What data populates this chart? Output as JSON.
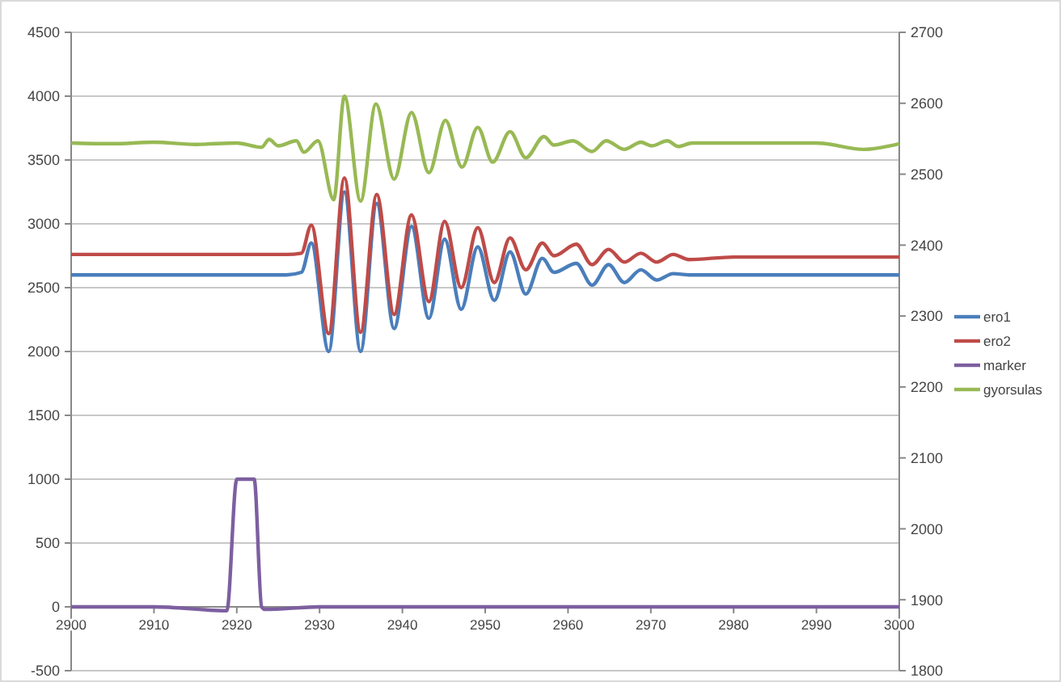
{
  "chart_data": {
    "type": "line",
    "xlim": [
      2900,
      3000
    ],
    "xticks": [
      2900,
      2910,
      2920,
      2930,
      2940,
      2950,
      2960,
      2970,
      2980,
      2990,
      3000
    ],
    "ylim": [
      -500,
      4500
    ],
    "yticks": [
      -500,
      0,
      500,
      1000,
      1500,
      2000,
      2500,
      3000,
      3500,
      4000,
      4500
    ],
    "y2lim": [
      1800,
      2700
    ],
    "y2ticks": [
      1800,
      1900,
      2000,
      2100,
      2200,
      2300,
      2400,
      2500,
      2600,
      2700
    ],
    "grid": "y",
    "legend": "right",
    "marker": "none",
    "line_style": "solid",
    "series": [
      {
        "name": "ero1",
        "color": "#4a7ebb",
        "x": [
          2900,
          2910,
          2920,
          2926,
          2927.8,
          2929,
          2931.1,
          2933,
          2934.95,
          2936.9,
          2939,
          2941.1,
          2943.2,
          2945.1,
          2947.1,
          2949.1,
          2951.1,
          2953,
          2954.9,
          2956.9,
          2958.3,
          2961,
          2962.9,
          2964.9,
          2966.8,
          2968.8,
          2970.7,
          2972.7,
          2974.6,
          2980,
          2990,
          3000
        ],
        "values": [
          2600,
          2600,
          2600,
          2600,
          2620,
          2850,
          2000,
          3250,
          2000,
          3160,
          2180,
          2980,
          2260,
          2880,
          2330,
          2820,
          2400,
          2780,
          2450,
          2730,
          2620,
          2690,
          2520,
          2680,
          2540,
          2640,
          2560,
          2610,
          2600,
          2600,
          2600,
          2600
        ]
      },
      {
        "name": "ero2",
        "color": "#be4b48",
        "x": [
          2900,
          2910,
          2920,
          2926,
          2927.8,
          2929,
          2931.1,
          2933,
          2934.95,
          2936.9,
          2939,
          2941.1,
          2943.2,
          2945.1,
          2947.1,
          2949.1,
          2951.1,
          2953,
          2954.9,
          2956.9,
          2958.3,
          2961,
          2962.9,
          2964.9,
          2966.8,
          2968.8,
          2970.7,
          2972.7,
          2974.6,
          2980,
          2990,
          3000
        ],
        "values": [
          2760,
          2760,
          2760,
          2760,
          2770,
          2990,
          2140,
          3360,
          2150,
          3230,
          2290,
          3070,
          2390,
          3020,
          2500,
          2970,
          2540,
          2890,
          2640,
          2850,
          2750,
          2840,
          2680,
          2800,
          2700,
          2770,
          2700,
          2760,
          2720,
          2740,
          2740,
          2740
        ]
      },
      {
        "name": "marker",
        "color": "#7d5fa0",
        "x": [
          2900,
          2910,
          2918.8,
          2920,
          2921,
          2922.1,
          2923,
          2923.4,
          2930,
          2950,
          2970,
          3000
        ],
        "values": [
          0,
          0,
          -30,
          1000,
          1000,
          1000,
          0,
          -20,
          0,
          0,
          0,
          0
        ]
      },
      {
        "name": "gyorsulas",
        "color": "#98b954",
        "axis": "y2",
        "x": [
          2900,
          2905,
          2910,
          2915,
          2920,
          2923,
          2923.9,
          2925,
          2927.2,
          2928.1,
          2929.8,
          2931.7,
          2933,
          2934.95,
          2936.8,
          2939,
          2941.1,
          2943.2,
          2945.2,
          2947.2,
          2949.1,
          2950.9,
          2953,
          2954.9,
          2957.1,
          2958.3,
          2960.6,
          2962.9,
          2964.6,
          2966.8,
          2968.8,
          2970.1,
          2972,
          2973.3,
          2975,
          2980,
          2990,
          2995.7,
          3000
        ],
        "values": [
          2544,
          2543,
          2545,
          2542,
          2544,
          2538,
          2549,
          2540,
          2547,
          2531,
          2547,
          2464,
          2610,
          2462,
          2599,
          2493,
          2587,
          2502,
          2576,
          2510,
          2566,
          2517,
          2560,
          2523,
          2553,
          2541,
          2547,
          2532,
          2547,
          2535,
          2545,
          2540,
          2547,
          2539,
          2544,
          2544,
          2544,
          2535,
          2543
        ]
      }
    ]
  }
}
